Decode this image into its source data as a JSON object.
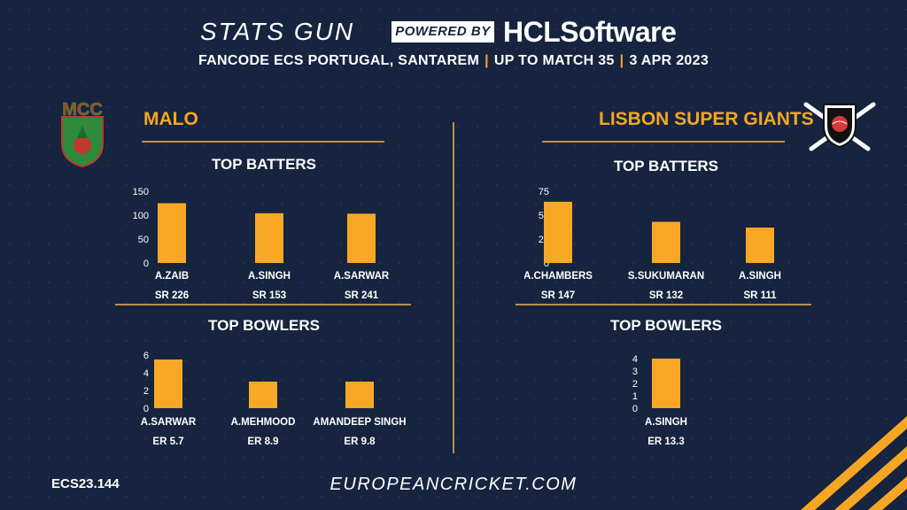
{
  "header": {
    "brand_left": "STATS GUN",
    "powered_by": "POWERED BY",
    "brand_right": "HCLSoftware",
    "event": "FANCODE ECS PORTUGAL, SANTAREM",
    "match": "UP TO MATCH  35",
    "date": "3 APR 2023",
    "separator": "|"
  },
  "teams": {
    "left": {
      "name": "MALO",
      "logo_text": "MCC",
      "batters_title": "TOP BATTERS",
      "bowlers_title": "TOP BOWLERS"
    },
    "right": {
      "name": "LISBON SUPER GIANTS",
      "batters_title": "TOP BATTERS",
      "bowlers_title": "TOP BOWLERS"
    }
  },
  "footer": {
    "code": "ECS23.144",
    "site": "EUROPEANCRICKET.COM"
  },
  "colors": {
    "background": "#16243f",
    "bar": "#f9a825",
    "accent": "#f5a623",
    "divider": "#b8914a"
  },
  "chart_data": [
    {
      "type": "bar",
      "title": "TOP BATTERS",
      "team": "MALO",
      "categories": [
        "A.ZAIB",
        "A.SINGH",
        "A.SARWAR"
      ],
      "values": [
        125,
        104,
        103
      ],
      "sublabels": [
        "SR 226",
        "SR 153",
        "SR 241"
      ],
      "yticks": [
        0,
        50,
        100,
        150
      ],
      "ylim": [
        0,
        150
      ]
    },
    {
      "type": "bar",
      "title": "TOP BOWLERS",
      "team": "MALO",
      "categories": [
        "A.SARWAR",
        "A.MEHMOOD",
        "AMANDEEP SINGH"
      ],
      "values": [
        5.5,
        3,
        3
      ],
      "sublabels": [
        "ER 5.7",
        "ER 8.9",
        "ER 9.8"
      ],
      "yticks": [
        0,
        2,
        4,
        6
      ],
      "ylim": [
        0,
        6
      ]
    },
    {
      "type": "bar",
      "title": "TOP BATTERS",
      "team": "LISBON SUPER GIANTS",
      "categories": [
        "A.CHAMBERS",
        "S.SUKUMARAN",
        "A.SINGH"
      ],
      "values": [
        64,
        43,
        37
      ],
      "sublabels": [
        "SR 147",
        "SR 132",
        "SR 111"
      ],
      "yticks": [
        0,
        25,
        50,
        75
      ],
      "ylim": [
        0,
        75
      ]
    },
    {
      "type": "bar",
      "title": "TOP BOWLERS",
      "team": "LISBON SUPER GIANTS",
      "categories": [
        "A.SINGH"
      ],
      "values": [
        4
      ],
      "sublabels": [
        "ER 13.3"
      ],
      "yticks": [
        0,
        1,
        2,
        3,
        4
      ],
      "ylim": [
        0,
        4
      ]
    }
  ]
}
